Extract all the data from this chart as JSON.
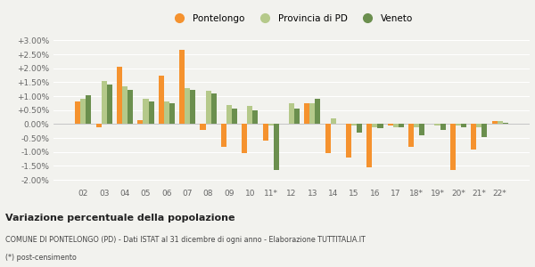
{
  "categories": [
    "02",
    "03",
    "04",
    "05",
    "06",
    "07",
    "08",
    "09",
    "10",
    "11*",
    "12",
    "13",
    "14",
    "15",
    "16",
    "17",
    "18*",
    "19*",
    "20*",
    "21*",
    "22*"
  ],
  "pontelongo": [
    0.8,
    -0.1,
    2.05,
    0.15,
    1.75,
    2.65,
    -0.2,
    -0.8,
    -1.05,
    -0.6,
    0.0,
    0.75,
    -1.05,
    -1.2,
    -1.55,
    -0.05,
    -0.8,
    0.0,
    -1.65,
    -0.9,
    0.12
  ],
  "provincia_pd": [
    0.9,
    1.55,
    1.35,
    0.9,
    0.8,
    1.3,
    1.2,
    0.7,
    0.65,
    -0.05,
    0.75,
    0.75,
    0.2,
    -0.05,
    -0.1,
    -0.1,
    -0.1,
    -0.05,
    -0.05,
    -0.1,
    0.1
  ],
  "veneto": [
    1.02,
    1.42,
    1.22,
    0.82,
    0.75,
    1.22,
    1.1,
    0.55,
    0.5,
    -1.65,
    0.55,
    0.9,
    0.0,
    -0.3,
    -0.15,
    -0.1,
    -0.4,
    -0.2,
    -0.1,
    -0.45,
    0.05
  ],
  "color_pontelongo": "#f5922e",
  "color_provincia": "#b5c98a",
  "color_veneto": "#6b8f4e",
  "background_color": "#f2f2ee",
  "grid_color": "#ffffff",
  "ylim_min": -2.25,
  "ylim_max": 3.3,
  "yticks": [
    -2.0,
    -1.5,
    -1.0,
    -0.5,
    0.0,
    0.5,
    1.0,
    1.5,
    2.0,
    2.5,
    3.0
  ],
  "title_line1": "Variazione percentuale della popolazione",
  "title_line2": "COMUNE DI PONTELONGO (PD) - Dati ISTAT al 31 dicembre di ogni anno - Elaborazione TUTTITALIA.IT",
  "title_line3": "(*) post-censimento",
  "legend_labels": [
    "Pontelongo",
    "Provincia di PD",
    "Veneto"
  ]
}
